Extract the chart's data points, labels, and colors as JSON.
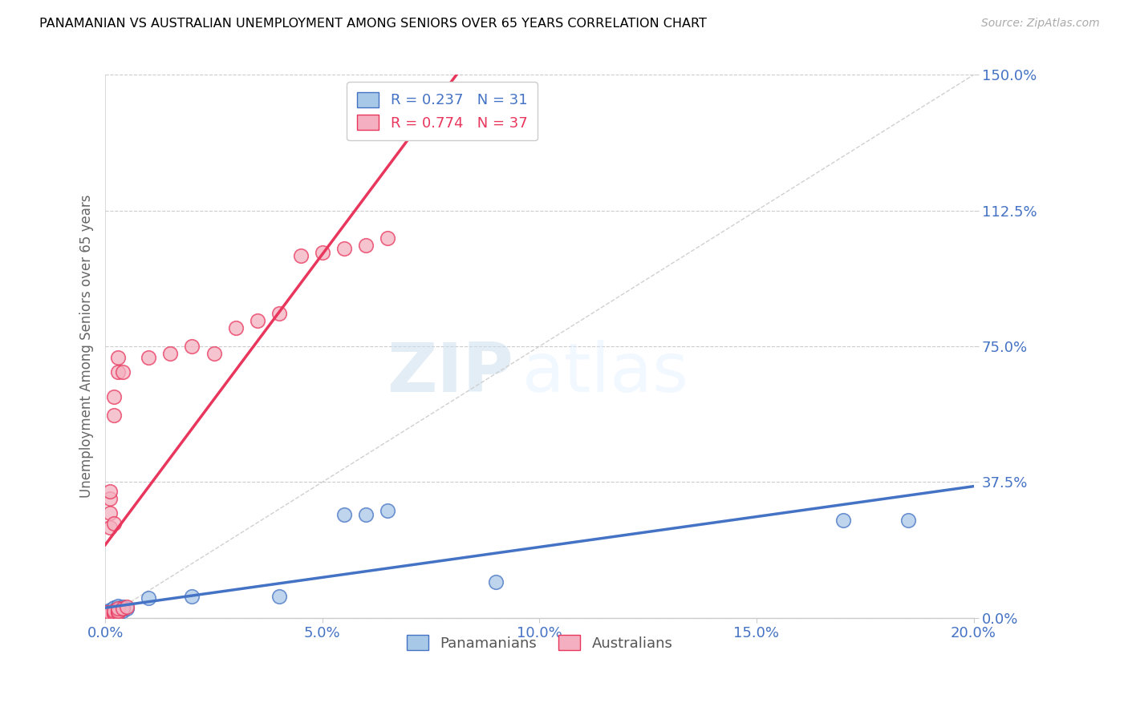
{
  "title": "PANAMANIAN VS AUSTRALIAN UNEMPLOYMENT AMONG SENIORS OVER 65 YEARS CORRELATION CHART",
  "source": "Source: ZipAtlas.com",
  "ylabel_left": "Unemployment Among Seniors over 65 years",
  "r_pan": 0.237,
  "n_pan": 31,
  "r_aus": 0.774,
  "n_aus": 37,
  "xlim": [
    0.0,
    0.2
  ],
  "ylim": [
    0.0,
    1.5
  ],
  "yticks": [
    0.0,
    0.375,
    0.75,
    1.125,
    1.5
  ],
  "ytick_labels": [
    "0.0%",
    "37.5%",
    "75.0%",
    "112.5%",
    "150.0%"
  ],
  "xticks": [
    0.0,
    0.05,
    0.1,
    0.15,
    0.2
  ],
  "xtick_labels": [
    "0.0%",
    "5.0%",
    "10.0%",
    "15.0%",
    "20.0%"
  ],
  "color_pan_fill": "#a8c8e8",
  "color_pan_edge": "#4472c4",
  "color_aus_fill": "#f4b0c0",
  "color_aus_edge": "#e8365d",
  "color_ref_line": "#d0d0d0",
  "color_axis_text": "#4472c4",
  "watermark_zip": "ZIP",
  "watermark_atlas": "atlas",
  "pan_x": [
    0.0,
    0.0,
    0.001,
    0.001,
    0.001,
    0.001,
    0.001,
    0.001,
    0.002,
    0.002,
    0.002,
    0.002,
    0.002,
    0.003,
    0.003,
    0.003,
    0.003,
    0.003,
    0.004,
    0.004,
    0.004,
    0.005,
    0.01,
    0.02,
    0.04,
    0.055,
    0.06,
    0.065,
    0.09,
    0.17,
    0.185
  ],
  "pan_y": [
    0.005,
    0.008,
    0.01,
    0.012,
    0.015,
    0.018,
    0.02,
    0.022,
    0.01,
    0.015,
    0.02,
    0.025,
    0.028,
    0.015,
    0.018,
    0.022,
    0.028,
    0.032,
    0.02,
    0.025,
    0.03,
    0.025,
    0.055,
    0.06,
    0.06,
    0.285,
    0.285,
    0.295,
    0.1,
    0.27,
    0.27
  ],
  "aus_x": [
    0.0,
    0.0,
    0.0,
    0.001,
    0.001,
    0.001,
    0.001,
    0.001,
    0.001,
    0.001,
    0.001,
    0.002,
    0.002,
    0.002,
    0.002,
    0.002,
    0.002,
    0.003,
    0.003,
    0.003,
    0.003,
    0.003,
    0.004,
    0.004,
    0.005,
    0.01,
    0.015,
    0.02,
    0.025,
    0.03,
    0.035,
    0.04,
    0.045,
    0.05,
    0.055,
    0.06,
    0.065
  ],
  "aus_y": [
    0.005,
    0.01,
    0.015,
    0.005,
    0.008,
    0.01,
    0.015,
    0.25,
    0.29,
    0.33,
    0.35,
    0.01,
    0.015,
    0.02,
    0.26,
    0.56,
    0.61,
    0.015,
    0.02,
    0.025,
    0.68,
    0.72,
    0.025,
    0.68,
    0.03,
    0.72,
    0.73,
    0.75,
    0.73,
    0.8,
    0.82,
    0.84,
    1.0,
    1.01,
    1.02,
    1.03,
    1.05
  ]
}
